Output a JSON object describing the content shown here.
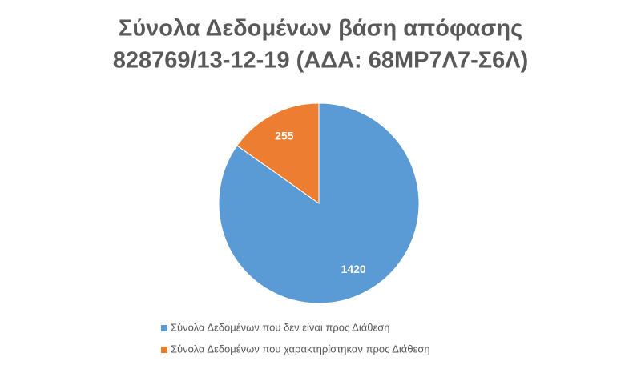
{
  "chart_data": {
    "type": "pie",
    "title": [
      "Σύνολα Δεδομένων βάση απόφασης",
      "828769/13-12-19 (ΑΔΑ: 68ΜΡ7Λ7-Σ6Λ)"
    ],
    "categories": [
      "Σύνολα Δεδομένων που δεν είναι προς Διάθεση",
      "Σύνολα Δεδομένων που χαρακτηρίστηκαν προς Διάθεση"
    ],
    "values": [
      1420,
      255
    ],
    "colors": [
      "#5b9bd5",
      "#ed7d31"
    ],
    "legend": "bottom"
  }
}
